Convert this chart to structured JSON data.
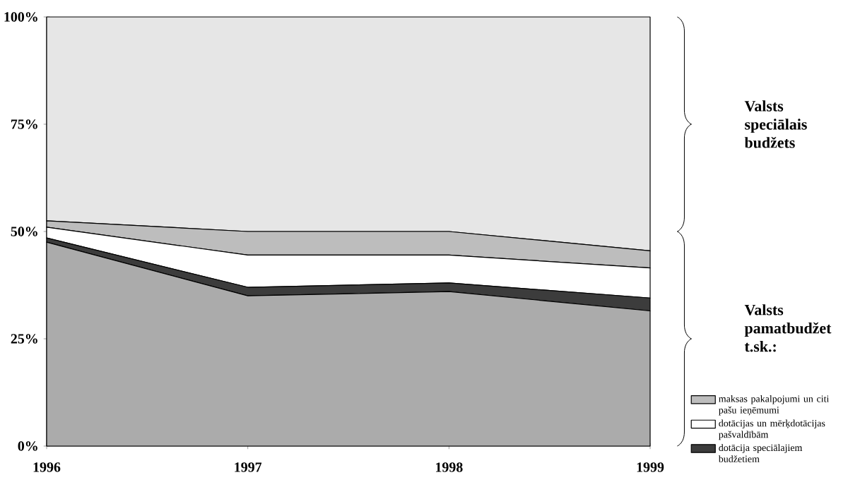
{
  "chart_data": {
    "type": "area",
    "stacked": true,
    "x": [
      1996,
      1997,
      1998,
      1999
    ],
    "xlim": [
      1996,
      1999
    ],
    "xticks": [
      1996,
      1997,
      1998,
      1999
    ],
    "ylim": [
      0,
      100
    ],
    "yticks": [
      {
        "value": 0,
        "label": "0%"
      },
      {
        "value": 25,
        "label": "25%"
      },
      {
        "value": 50,
        "label": "50%"
      },
      {
        "value": 75,
        "label": "75%"
      },
      {
        "value": 100,
        "label": "100%"
      }
    ],
    "series": [
      {
        "color": "#ababab",
        "values": [
          47.5,
          35,
          36,
          31.5
        ]
      },
      {
        "name": "dotācija speciālajiem budžetiem",
        "color": "#3c3c3c",
        "values": [
          1,
          2,
          2,
          3
        ]
      },
      {
        "name": "dotācijas un mērķdotācijas pašvaldībām",
        "color": "#ffffff",
        "values": [
          2.5,
          7.5,
          6.5,
          7
        ]
      },
      {
        "name": "maksas pakalpojumi un citi pašu ieņēmumi",
        "color": "#bdbdbd",
        "values": [
          1.5,
          5.5,
          5.5,
          4
        ]
      },
      {
        "color": "#e6e6e6",
        "values": [
          47.5,
          50,
          50,
          54.5
        ]
      }
    ],
    "legend": "bottom right",
    "annotations": [
      "Valsts speciālais budžets",
      "Valsts pamatbudžet t.sk.:"
    ]
  }
}
